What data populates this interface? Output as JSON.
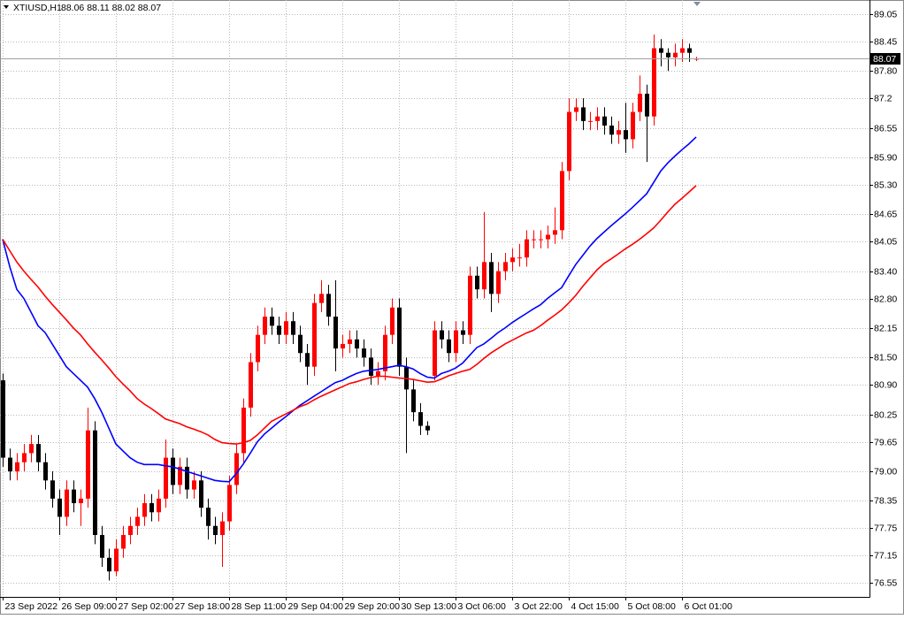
{
  "chart_data": {
    "type": "candlestick",
    "title": "XTIUSD,H1",
    "subtitle": "88.06 88.11 88.02 88.07",
    "categories": [
      "23 Sep 2022",
      null,
      null,
      null,
      null,
      null,
      null,
      null,
      "26 Sep 09:00",
      null,
      null,
      null,
      null,
      null,
      null,
      null,
      "27 Sep 02:00",
      null,
      null,
      null,
      null,
      null,
      null,
      null,
      "27 Sep 18:00",
      null,
      null,
      null,
      null,
      null,
      null,
      null,
      "28 Sep 11:00",
      null,
      null,
      null,
      null,
      null,
      null,
      null,
      "29 Sep 04:00",
      null,
      null,
      null,
      null,
      null,
      null,
      null,
      "29 Sep 20:00",
      null,
      null,
      null,
      null,
      null,
      null,
      null,
      "30 Sep 13:00",
      null,
      null,
      null,
      null,
      null,
      null,
      null,
      "3 Oct 06:00",
      null,
      null,
      null,
      null,
      null,
      null,
      null,
      "3 Oct 22:00",
      null,
      null,
      null,
      null,
      null,
      null,
      null,
      "4 Oct 15:00",
      null,
      null,
      null,
      null,
      null,
      null,
      null,
      "5 Oct 08:00",
      null,
      null,
      null,
      null,
      null,
      null,
      null,
      "6 Oct 01:00",
      null,
      null
    ],
    "open": [
      81.0,
      79.3,
      79.0,
      79.2,
      79.4,
      79.6,
      79.2,
      78.8,
      78.4,
      78.0,
      78.6,
      78.3,
      78.4,
      79.9,
      77.6,
      77.1,
      76.8,
      77.3,
      77.6,
      77.8,
      78.0,
      78.3,
      78.1,
      78.4,
      79.3,
      78.7,
      79.1,
      78.6,
      78.8,
      78.2,
      77.8,
      77.6,
      77.9,
      78.7,
      79.4,
      80.4,
      81.4,
      82.0,
      82.4,
      82.2,
      82.0,
      82.3,
      82.0,
      81.6,
      81.3,
      82.7,
      82.9,
      82.4,
      81.7,
      81.8,
      81.9,
      81.7,
      81.5,
      81.1,
      81.2,
      82.0,
      82.6,
      81.3,
      80.8,
      80.3,
      80.0,
      81.1,
      82.1,
      81.9,
      81.6,
      82.1,
      82.0,
      83.3,
      83.0,
      83.6,
      82.9,
      83.4,
      83.6,
      83.7,
      83.7,
      84.1,
      84.1,
      84.1,
      84.2,
      84.3,
      85.6,
      86.9,
      87.0,
      86.7,
      86.7,
      86.8,
      86.6,
      86.4,
      86.5,
      86.3,
      86.9,
      87.3,
      86.8,
      88.3,
      88.2,
      88.1,
      88.2,
      88.3,
      88.06
    ],
    "high": [
      81.15,
      79.5,
      79.4,
      79.6,
      79.8,
      79.8,
      79.4,
      79.0,
      78.6,
      78.8,
      78.8,
      78.6,
      80.4,
      80.1,
      77.8,
      77.3,
      77.5,
      77.8,
      78.0,
      78.2,
      78.5,
      78.5,
      78.6,
      79.7,
      79.5,
      79.3,
      79.3,
      79.0,
      79.0,
      78.4,
      78.0,
      78.1,
      78.9,
      79.6,
      80.6,
      81.6,
      82.2,
      82.6,
      82.6,
      82.4,
      82.5,
      82.5,
      82.2,
      81.8,
      82.9,
      83.2,
      83.1,
      83.2,
      82.0,
      82.1,
      82.1,
      81.9,
      81.7,
      81.4,
      82.2,
      82.8,
      82.8,
      81.5,
      81.0,
      80.5,
      80.1,
      82.3,
      82.3,
      82.1,
      82.3,
      82.3,
      83.5,
      83.5,
      84.7,
      83.8,
      83.6,
      83.8,
      83.9,
      84.0,
      84.3,
      84.3,
      84.3,
      84.4,
      84.8,
      85.8,
      87.2,
      87.2,
      87.2,
      86.9,
      87.0,
      87.0,
      86.8,
      86.7,
      87.1,
      87.1,
      87.7,
      87.5,
      88.6,
      88.5,
      88.3,
      88.4,
      88.5,
      88.4,
      88.11
    ],
    "low": [
      79.1,
      78.8,
      78.8,
      79.0,
      79.2,
      79.0,
      78.6,
      78.2,
      77.6,
      77.8,
      78.1,
      77.8,
      78.2,
      77.4,
      76.9,
      76.6,
      76.7,
      77.1,
      77.4,
      77.6,
      77.8,
      77.9,
      77.9,
      78.2,
      78.5,
      78.5,
      78.4,
      78.4,
      78.0,
      77.5,
      77.4,
      76.9,
      77.7,
      78.5,
      79.2,
      80.2,
      81.2,
      81.8,
      82.0,
      81.8,
      81.8,
      81.8,
      81.4,
      80.9,
      81.1,
      82.5,
      82.2,
      81.2,
      81.5,
      81.6,
      81.5,
      81.3,
      80.9,
      80.9,
      81.0,
      81.8,
      81.1,
      79.4,
      80.1,
      79.8,
      79.8,
      81.0,
      81.7,
      81.4,
      81.4,
      81.8,
      81.8,
      82.8,
      82.8,
      82.5,
      82.7,
      83.2,
      83.4,
      83.5,
      83.5,
      83.9,
      83.9,
      83.9,
      84.0,
      84.1,
      85.4,
      86.7,
      86.5,
      86.5,
      86.5,
      86.4,
      86.2,
      86.2,
      86.0,
      86.1,
      86.7,
      85.8,
      86.6,
      87.9,
      87.8,
      87.9,
      88.0,
      88.0,
      88.02
    ],
    "close": [
      79.3,
      79.0,
      79.2,
      79.4,
      79.6,
      79.2,
      78.8,
      78.4,
      78.0,
      78.6,
      78.3,
      78.4,
      79.9,
      77.6,
      77.1,
      76.8,
      77.3,
      77.6,
      77.8,
      78.0,
      78.3,
      78.1,
      78.4,
      79.3,
      78.7,
      79.1,
      78.6,
      78.8,
      78.2,
      77.8,
      77.6,
      77.9,
      78.7,
      79.4,
      80.4,
      81.4,
      82.0,
      82.4,
      82.2,
      82.0,
      82.3,
      82.0,
      81.6,
      81.3,
      82.7,
      82.9,
      82.4,
      81.7,
      81.8,
      81.9,
      81.7,
      81.5,
      81.1,
      81.2,
      82.0,
      82.6,
      81.3,
      80.8,
      80.3,
      80.0,
      79.9,
      82.1,
      81.9,
      81.6,
      82.1,
      82.0,
      83.3,
      83.0,
      83.6,
      82.9,
      83.4,
      83.6,
      83.7,
      83.7,
      84.1,
      84.1,
      84.1,
      84.2,
      84.3,
      85.6,
      86.9,
      87.0,
      86.7,
      86.7,
      86.8,
      86.6,
      86.4,
      86.5,
      86.3,
      86.9,
      87.3,
      86.8,
      88.3,
      88.2,
      88.1,
      88.2,
      88.3,
      88.2,
      88.07
    ],
    "up_color": "#ff0000",
    "down_color": "#000000",
    "series": [
      {
        "color": "#0000ff",
        "values": [
          84.1,
          83.5,
          83.0,
          82.8,
          82.5,
          82.2,
          82.05,
          81.8,
          81.55,
          81.3,
          81.15,
          81.0,
          80.85,
          80.6,
          80.3,
          79.95,
          79.6,
          79.45,
          79.3,
          79.2,
          79.15,
          79.15,
          79.15,
          79.12,
          79.1,
          79.05,
          79.0,
          78.95,
          78.9,
          78.85,
          78.8,
          78.78,
          78.77,
          78.95,
          79.16,
          79.4,
          79.65,
          79.82,
          79.95,
          80.08,
          80.2,
          80.33,
          80.45,
          80.55,
          80.65,
          80.75,
          80.85,
          80.95,
          81.0,
          81.08,
          81.15,
          81.2,
          81.22,
          81.24,
          81.27,
          81.3,
          81.33,
          81.3,
          81.25,
          81.15,
          81.07,
          81.05,
          81.15,
          81.2,
          81.27,
          81.38,
          81.55,
          81.72,
          81.8,
          81.92,
          82.05,
          82.15,
          82.27,
          82.37,
          82.47,
          82.57,
          82.66,
          82.8,
          82.92,
          83.04,
          83.3,
          83.55,
          83.75,
          83.95,
          84.12,
          84.26,
          84.4,
          84.53,
          84.66,
          84.8,
          84.95,
          85.1,
          85.35,
          85.6,
          85.78,
          85.93,
          86.07,
          86.2,
          86.35
        ]
      },
      {
        "color": "#ff0000",
        "values": [
          84.1,
          83.85,
          83.6,
          83.4,
          83.22,
          83.05,
          82.85,
          82.67,
          82.5,
          82.33,
          82.15,
          82.0,
          81.8,
          81.62,
          81.45,
          81.27,
          81.08,
          80.92,
          80.77,
          80.6,
          80.48,
          80.38,
          80.27,
          80.15,
          80.1,
          80.05,
          79.98,
          79.93,
          79.87,
          79.8,
          79.7,
          79.63,
          79.61,
          79.6,
          79.63,
          79.68,
          79.8,
          79.95,
          80.1,
          80.18,
          80.26,
          80.34,
          80.42,
          80.48,
          80.57,
          80.65,
          80.72,
          80.79,
          80.86,
          80.93,
          80.97,
          81.02,
          81.06,
          81.09,
          81.09,
          81.07,
          81.05,
          81.04,
          81.02,
          80.99,
          80.96,
          80.97,
          81.03,
          81.1,
          81.15,
          81.2,
          81.24,
          81.35,
          81.48,
          81.6,
          81.7,
          81.8,
          81.88,
          81.96,
          82.04,
          82.1,
          82.2,
          82.32,
          82.43,
          82.55,
          82.7,
          82.87,
          83.07,
          83.25,
          83.43,
          83.57,
          83.67,
          83.78,
          83.89,
          83.99,
          84.1,
          84.22,
          84.35,
          84.52,
          84.7,
          84.87,
          85.0,
          85.14,
          85.28
        ]
      }
    ],
    "ylim": [
      76.24,
      89.36
    ],
    "yticks": [
      89.05,
      88.45,
      {
        "value": 87.8,
        "label": "87.80"
      },
      87.2,
      86.55,
      {
        "value": 85.9,
        "label": "85.90"
      },
      {
        "value": 85.3,
        "label": "85.30"
      },
      84.65,
      84.05,
      {
        "value": 83.4,
        "label": "83.40"
      },
      {
        "value": 82.8,
        "label": "82.80"
      },
      82.15,
      {
        "value": 81.5,
        "label": "81.50"
      },
      {
        "value": 80.9,
        "label": "80.90"
      },
      80.25,
      79.65,
      {
        "value": 79.0,
        "label": "79.00"
      },
      78.35,
      77.75,
      77.15,
      76.55
    ],
    "grid": true
  }
}
